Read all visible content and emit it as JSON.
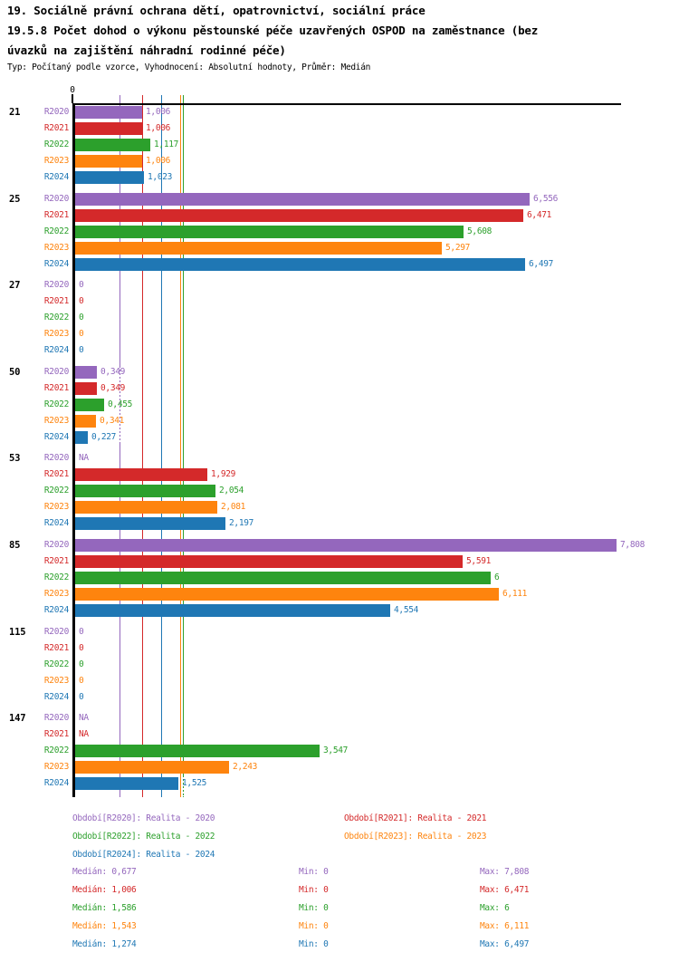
{
  "page": {
    "background": "#ffffff"
  },
  "header": {
    "line1": "19. Sociálně právní ochrana dětí, opatrovnictví, sociální práce",
    "line2": "19.5.8 Počet dohod o výkonu pěstounské péče uzavřených OSPOD na zaměstnance (bez",
    "line3": "úvazků na zajištění náhradní rodinné péče)",
    "meta": "Typ: Počítaný podle vzorce, Vyhodnocení: Absolutní hodnoty, Průměr: Medián"
  },
  "chart_data": {
    "type": "bar",
    "orientation": "horizontal",
    "grid": "off",
    "decimal_separator": ",",
    "value_axis": {
      "zero_label": "0",
      "min": 0,
      "visible_max": 7.808
    },
    "series": [
      {
        "key": "R2020",
        "name": "Realita - 2020",
        "color": "#9467BD",
        "legend": "Období[R2020]: Realita - 2020",
        "median": 0.677,
        "median_text": "Medián: 0,677",
        "min_text": "Min: 0",
        "max_text": "Max: 7,808"
      },
      {
        "key": "R2021",
        "name": "Realita - 2021",
        "color": "#D4292A",
        "legend": "Období[R2021]: Realita - 2021",
        "median": 1.006,
        "median_text": "Medián: 1,006",
        "min_text": "Min: 0",
        "max_text": "Max: 6,471"
      },
      {
        "key": "R2022",
        "name": "Realita - 2022",
        "color": "#2CA02C",
        "legend": "Období[R2022]: Realita - 2022",
        "median": 1.586,
        "median_text": "Medián: 1,586",
        "min_text": "Min: 0",
        "max_text": "Max: 6"
      },
      {
        "key": "R2023",
        "name": "Realita - 2023",
        "color": "#FE840E",
        "legend": "Období[R2023]: Realita - 2023",
        "median": 1.543,
        "median_text": "Medián: 1,543",
        "min_text": "Min: 0",
        "max_text": "Max: 6,111"
      },
      {
        "key": "R2024",
        "name": "Realita - 2024",
        "color": "#1F77B4",
        "legend": "Období[R2024]: Realita - 2024",
        "median": 1.274,
        "median_text": "Medián: 1,274",
        "min_text": "Min: 0",
        "max_text": "Max: 6,497"
      }
    ],
    "groups": [
      {
        "id": "21",
        "rows": [
          {
            "display": "1,006",
            "value": 1.006
          },
          {
            "display": "1,006",
            "value": 1.006
          },
          {
            "display": "1,117",
            "value": 1.117
          },
          {
            "display": "1,006",
            "value": 1.006
          },
          {
            "display": "1,023",
            "value": 1.023
          }
        ]
      },
      {
        "id": "25",
        "rows": [
          {
            "display": "6,556",
            "value": 6.556
          },
          {
            "display": "6,471",
            "value": 6.471
          },
          {
            "display": "5,608",
            "value": 5.608
          },
          {
            "display": "5,297",
            "value": 5.297
          },
          {
            "display": "6,497",
            "value": 6.497
          }
        ]
      },
      {
        "id": "27",
        "rows": [
          {
            "display": "0",
            "value": 0
          },
          {
            "display": "0",
            "value": 0
          },
          {
            "display": "0",
            "value": 0
          },
          {
            "display": "0",
            "value": 0
          },
          {
            "display": "0",
            "value": 0
          }
        ]
      },
      {
        "id": "50",
        "rows": [
          {
            "display": "0,349",
            "value": 0.349
          },
          {
            "display": "0,349",
            "value": 0.349
          },
          {
            "display": "0,455",
            "value": 0.455
          },
          {
            "display": "0,341",
            "value": 0.341
          },
          {
            "display": "0,227",
            "value": 0.227
          }
        ]
      },
      {
        "id": "53",
        "rows": [
          {
            "display": "NA",
            "value": null
          },
          {
            "display": "1,929",
            "value": 1.929
          },
          {
            "display": "2,054",
            "value": 2.054
          },
          {
            "display": "2,081",
            "value": 2.081
          },
          {
            "display": "2,197",
            "value": 2.197
          }
        ]
      },
      {
        "id": "85",
        "rows": [
          {
            "display": "7,808",
            "value": 7.808
          },
          {
            "display": "5,591",
            "value": 5.591
          },
          {
            "display": "6",
            "value": 6
          },
          {
            "display": "6,111",
            "value": 6.111
          },
          {
            "display": "4,554",
            "value": 4.554
          }
        ]
      },
      {
        "id": "115",
        "rows": [
          {
            "display": "0",
            "value": 0
          },
          {
            "display": "0",
            "value": 0
          },
          {
            "display": "0",
            "value": 0
          },
          {
            "display": "0",
            "value": 0
          },
          {
            "display": "0",
            "value": 0
          }
        ]
      },
      {
        "id": "147",
        "rows": [
          {
            "display": "NA",
            "value": null
          },
          {
            "display": "NA",
            "value": null
          },
          {
            "display": "3,547",
            "value": 3.547
          },
          {
            "display": "2,243",
            "value": 2.243
          },
          {
            "display": "1,525",
            "value": 1.525
          }
        ]
      }
    ],
    "legend_position": "bottom"
  }
}
